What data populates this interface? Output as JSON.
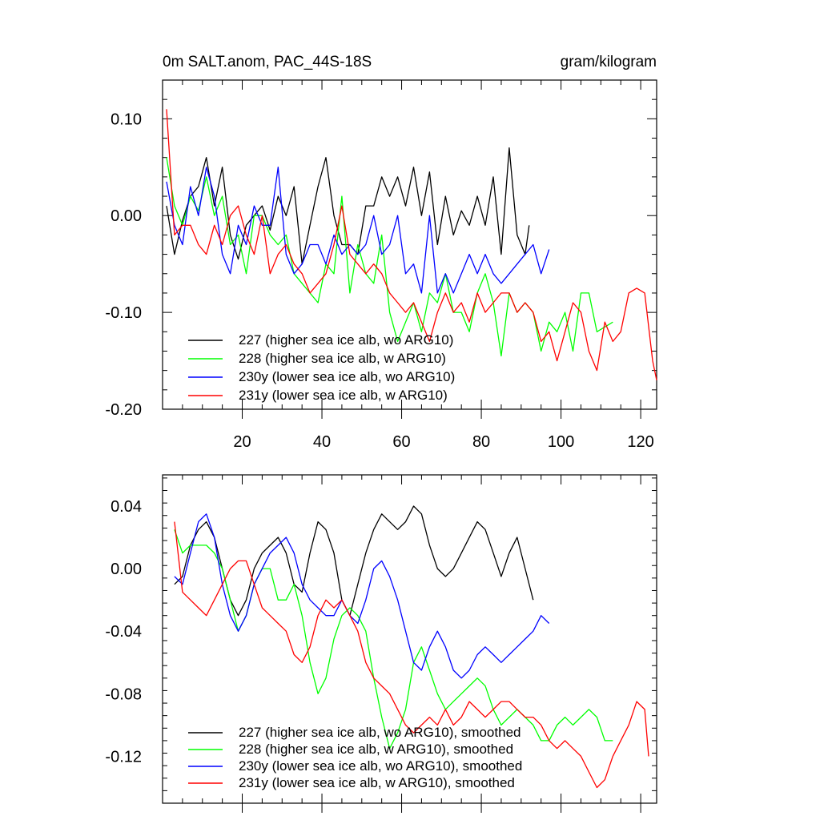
{
  "chart_data": [
    {
      "type": "line",
      "title": "0m SALT.anom, PAC_44S-18S",
      "units": "gram/kilogram",
      "xlim": [
        0,
        124
      ],
      "ylim": [
        -0.2,
        0.14
      ],
      "xticks": [
        20,
        40,
        60,
        80,
        100,
        120
      ],
      "yticks": [
        0.1,
        0.0,
        -0.1,
        -0.2
      ],
      "yticklabels": [
        "0.10",
        "0.00",
        "-0.10",
        "-0.20"
      ],
      "grid": false,
      "legend_position": "bottom-left",
      "series": [
        {
          "name": "227 (higher sea ice alb, wo ARG10)",
          "color": "#000000",
          "x": [
            1,
            3,
            5,
            7,
            9,
            11,
            13,
            15,
            17,
            19,
            21,
            23,
            25,
            27,
            29,
            31,
            33,
            35,
            37,
            39,
            41,
            43,
            45,
            47,
            49,
            51,
            53,
            55,
            57,
            59,
            61,
            63,
            65,
            67,
            69,
            71,
            73,
            75,
            77,
            79,
            81,
            83,
            85,
            87,
            89,
            91,
            92
          ],
          "y": [
            0.01,
            -0.04,
            -0.005,
            0.02,
            0.03,
            0.06,
            0.01,
            0.05,
            -0.02,
            -0.045,
            -0.01,
            0.0,
            0.01,
            -0.015,
            0.02,
            0.0,
            0.03,
            -0.05,
            -0.01,
            0.03,
            0.06,
            0.0,
            -0.03,
            -0.03,
            -0.04,
            0.01,
            0.01,
            0.04,
            0.02,
            0.04,
            0.01,
            0.05,
            0.0,
            0.045,
            -0.03,
            0.02,
            -0.02,
            0.005,
            -0.01,
            0.02,
            -0.01,
            0.04,
            -0.04,
            0.07,
            -0.02,
            -0.04,
            -0.01
          ]
        },
        {
          "name": "228 (higher sea ice alb, w ARG10)",
          "color": "#00ff00",
          "x": [
            1,
            3,
            5,
            7,
            9,
            11,
            13,
            15,
            17,
            19,
            21,
            23,
            25,
            27,
            29,
            31,
            33,
            35,
            37,
            39,
            41,
            43,
            45,
            47,
            49,
            51,
            53,
            55,
            57,
            59,
            61,
            63,
            65,
            67,
            69,
            71,
            73,
            75,
            77,
            79,
            81,
            83,
            85,
            87,
            89,
            91,
            93,
            95,
            97,
            99,
            101,
            103,
            105,
            107,
            109,
            111,
            113
          ],
          "y": [
            0.06,
            0.01,
            -0.01,
            0.02,
            0.005,
            0.04,
            0.0,
            0.02,
            -0.03,
            -0.02,
            -0.06,
            0.0,
            0.0,
            -0.02,
            -0.03,
            -0.02,
            -0.06,
            -0.07,
            -0.08,
            -0.09,
            -0.05,
            -0.06,
            0.02,
            -0.08,
            -0.03,
            -0.06,
            -0.07,
            -0.02,
            -0.1,
            -0.13,
            -0.11,
            -0.09,
            -0.12,
            -0.08,
            -0.09,
            -0.06,
            -0.1,
            -0.1,
            -0.12,
            -0.08,
            -0.06,
            -0.09,
            -0.145,
            -0.08,
            -0.1,
            -0.09,
            -0.1,
            -0.14,
            -0.11,
            -0.12,
            -0.1,
            -0.14,
            -0.08,
            -0.08,
            -0.12,
            -0.115,
            -0.11
          ]
        },
        {
          "name": "230y (lower sea ice alb, wo ARG10)",
          "color": "#0000ff",
          "x": [
            1,
            3,
            5,
            7,
            9,
            11,
            13,
            15,
            17,
            19,
            21,
            23,
            25,
            27,
            29,
            31,
            33,
            35,
            37,
            39,
            41,
            43,
            45,
            47,
            49,
            51,
            53,
            55,
            57,
            59,
            61,
            63,
            65,
            67,
            69,
            71,
            73,
            75,
            77,
            79,
            81,
            83,
            85,
            87,
            89,
            91,
            93,
            95,
            97
          ],
          "y": [
            0.035,
            -0.01,
            -0.03,
            0.03,
            0.0,
            0.05,
            0.02,
            -0.04,
            -0.06,
            -0.01,
            -0.03,
            0.01,
            -0.01,
            -0.01,
            0.05,
            -0.04,
            -0.06,
            -0.05,
            -0.03,
            -0.03,
            -0.05,
            -0.02,
            -0.04,
            -0.03,
            -0.04,
            -0.03,
            0.0,
            -0.04,
            -0.03,
            0.0,
            -0.06,
            -0.05,
            -0.08,
            0.0,
            -0.08,
            -0.06,
            -0.08,
            -0.06,
            -0.04,
            -0.06,
            -0.04,
            -0.06,
            -0.07,
            -0.06,
            -0.05,
            -0.04,
            -0.03,
            -0.06,
            -0.035
          ]
        },
        {
          "name": "231y (lower sea ice alb, w ARG10)",
          "color": "#ff0000",
          "x": [
            1,
            3,
            5,
            7,
            9,
            11,
            13,
            15,
            17,
            19,
            21,
            23,
            25,
            27,
            29,
            31,
            33,
            35,
            37,
            39,
            41,
            43,
            45,
            47,
            49,
            51,
            53,
            55,
            57,
            59,
            61,
            63,
            65,
            67,
            69,
            71,
            73,
            75,
            77,
            79,
            81,
            83,
            85,
            87,
            89,
            91,
            93,
            95,
            97,
            99,
            101,
            103,
            105,
            107,
            109,
            111,
            113,
            115,
            117,
            119,
            121,
            123,
            124
          ],
          "y": [
            0.11,
            -0.02,
            -0.01,
            -0.01,
            -0.03,
            -0.04,
            -0.01,
            -0.03,
            0.0,
            0.01,
            -0.02,
            -0.04,
            0.0,
            -0.06,
            -0.04,
            -0.03,
            -0.05,
            -0.06,
            -0.08,
            -0.07,
            -0.06,
            -0.03,
            0.01,
            -0.04,
            -0.05,
            -0.06,
            -0.05,
            -0.06,
            -0.08,
            -0.09,
            -0.1,
            -0.09,
            -0.11,
            -0.13,
            -0.1,
            -0.08,
            -0.1,
            -0.09,
            -0.11,
            -0.08,
            -0.1,
            -0.09,
            -0.08,
            -0.08,
            -0.1,
            -0.09,
            -0.1,
            -0.13,
            -0.12,
            -0.15,
            -0.12,
            -0.09,
            -0.1,
            -0.14,
            -0.16,
            -0.11,
            -0.13,
            -0.12,
            -0.08,
            -0.075,
            -0.08,
            -0.15,
            -0.17
          ]
        }
      ]
    },
    {
      "type": "line",
      "xlim": [
        0,
        124
      ],
      "ylim": [
        -0.15,
        0.06
      ],
      "yticks": [
        0.04,
        0.0,
        -0.04,
        -0.08,
        -0.12
      ],
      "yticklabels": [
        "0.04",
        "0.00",
        "-0.04",
        "-0.08",
        "-0.12"
      ],
      "grid": false,
      "legend_position": "bottom-left",
      "series": [
        {
          "name": "227 (higher sea ice alb, wo ARG10), smoothed",
          "color": "#000000",
          "x": [
            3,
            5,
            7,
            9,
            11,
            13,
            15,
            17,
            19,
            21,
            23,
            25,
            27,
            29,
            31,
            33,
            35,
            37,
            39,
            41,
            43,
            45,
            47,
            49,
            51,
            53,
            55,
            57,
            59,
            61,
            63,
            65,
            67,
            69,
            71,
            73,
            75,
            77,
            79,
            81,
            83,
            85,
            87,
            89,
            91,
            93
          ],
          "y": [
            -0.01,
            -0.005,
            0.015,
            0.025,
            0.03,
            0.02,
            0.0,
            -0.02,
            -0.03,
            -0.02,
            0.0,
            0.01,
            0.015,
            0.02,
            0.01,
            -0.01,
            -0.015,
            0.01,
            0.03,
            0.025,
            0.01,
            -0.02,
            -0.03,
            -0.01,
            0.01,
            0.025,
            0.035,
            0.03,
            0.025,
            0.03,
            0.04,
            0.035,
            0.015,
            0.0,
            -0.005,
            0.0,
            0.01,
            0.02,
            0.03,
            0.025,
            0.01,
            -0.005,
            0.01,
            0.02,
            0.0,
            -0.02
          ]
        },
        {
          "name": "228 (higher sea ice alb, w ARG10), smoothed",
          "color": "#00ff00",
          "x": [
            3,
            5,
            7,
            9,
            11,
            13,
            15,
            17,
            19,
            21,
            23,
            25,
            27,
            29,
            31,
            33,
            35,
            37,
            39,
            41,
            43,
            45,
            47,
            49,
            51,
            53,
            55,
            57,
            59,
            61,
            63,
            65,
            67,
            69,
            71,
            73,
            75,
            77,
            79,
            81,
            83,
            85,
            87,
            89,
            91,
            93,
            95,
            97,
            99,
            101,
            103,
            105,
            107,
            109,
            111,
            113
          ],
          "y": [
            0.025,
            0.01,
            0.015,
            0.015,
            0.015,
            0.01,
            0.0,
            -0.02,
            -0.04,
            -0.03,
            -0.01,
            0.0,
            0.0,
            -0.02,
            -0.02,
            -0.01,
            -0.03,
            -0.06,
            -0.08,
            -0.07,
            -0.045,
            -0.03,
            -0.025,
            -0.03,
            -0.04,
            -0.07,
            -0.095,
            -0.115,
            -0.105,
            -0.09,
            -0.06,
            -0.05,
            -0.065,
            -0.08,
            -0.09,
            -0.085,
            -0.08,
            -0.075,
            -0.07,
            -0.075,
            -0.09,
            -0.1,
            -0.095,
            -0.09,
            -0.095,
            -0.1,
            -0.11,
            -0.11,
            -0.1,
            -0.095,
            -0.1,
            -0.095,
            -0.09,
            -0.095,
            -0.11,
            -0.11
          ]
        },
        {
          "name": "230y (lower sea ice alb, wo ARG10), smoothed",
          "color": "#0000ff",
          "x": [
            3,
            5,
            7,
            9,
            11,
            13,
            15,
            17,
            19,
            21,
            23,
            25,
            27,
            29,
            31,
            33,
            35,
            37,
            39,
            41,
            43,
            45,
            47,
            49,
            51,
            53,
            55,
            57,
            59,
            61,
            63,
            65,
            67,
            69,
            71,
            73,
            75,
            77,
            79,
            81,
            83,
            85,
            87,
            89,
            91,
            93,
            95,
            97
          ],
          "y": [
            -0.005,
            -0.01,
            0.01,
            0.03,
            0.035,
            0.02,
            -0.01,
            -0.03,
            -0.04,
            -0.03,
            -0.01,
            0.0,
            0.01,
            0.015,
            0.02,
            0.01,
            -0.01,
            -0.02,
            -0.025,
            -0.03,
            -0.03,
            -0.02,
            -0.03,
            -0.035,
            -0.02,
            0.0,
            0.005,
            -0.005,
            -0.02,
            -0.04,
            -0.06,
            -0.065,
            -0.05,
            -0.04,
            -0.05,
            -0.065,
            -0.07,
            -0.065,
            -0.055,
            -0.05,
            -0.055,
            -0.06,
            -0.055,
            -0.05,
            -0.045,
            -0.04,
            -0.03,
            -0.035
          ]
        },
        {
          "name": "231y (lower sea ice alb, w ARG10), smoothed",
          "color": "#ff0000",
          "x": [
            3,
            5,
            7,
            9,
            11,
            13,
            15,
            17,
            19,
            21,
            23,
            25,
            27,
            29,
            31,
            33,
            35,
            37,
            39,
            41,
            43,
            45,
            47,
            49,
            51,
            53,
            55,
            57,
            59,
            61,
            63,
            65,
            67,
            69,
            71,
            73,
            75,
            77,
            79,
            81,
            83,
            85,
            87,
            89,
            91,
            93,
            95,
            97,
            99,
            101,
            103,
            105,
            107,
            109,
            111,
            113,
            115,
            117,
            119,
            121,
            122
          ],
          "y": [
            0.03,
            -0.015,
            -0.02,
            -0.025,
            -0.03,
            -0.02,
            -0.01,
            0.0,
            0.005,
            0.005,
            -0.01,
            -0.025,
            -0.03,
            -0.035,
            -0.04,
            -0.055,
            -0.06,
            -0.05,
            -0.03,
            -0.02,
            -0.025,
            -0.02,
            -0.03,
            -0.04,
            -0.06,
            -0.07,
            -0.075,
            -0.08,
            -0.09,
            -0.1,
            -0.105,
            -0.1,
            -0.095,
            -0.1,
            -0.09,
            -0.1,
            -0.095,
            -0.085,
            -0.09,
            -0.095,
            -0.09,
            -0.085,
            -0.085,
            -0.09,
            -0.095,
            -0.095,
            -0.1,
            -0.11,
            -0.115,
            -0.11,
            -0.115,
            -0.12,
            -0.13,
            -0.14,
            -0.135,
            -0.12,
            -0.11,
            -0.1,
            -0.085,
            -0.09,
            -0.12
          ]
        }
      ]
    }
  ]
}
